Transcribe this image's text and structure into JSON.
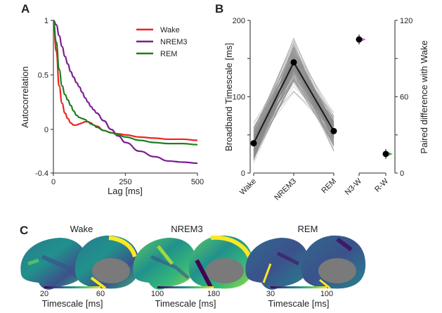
{
  "chart_data": [
    {
      "panel": "A",
      "type": "line",
      "xlabel": "Lag [ms]",
      "ylabel": "Autocorrelation",
      "xlim": [
        0,
        500
      ],
      "ylim": [
        -0.4,
        1
      ],
      "xticks": [
        "0",
        "250",
        "500"
      ],
      "yticks": [
        "-0.4",
        "0",
        "0.5",
        "1"
      ],
      "legend_position": "top-right",
      "x": [
        0,
        10,
        20,
        30,
        40,
        50,
        60,
        70,
        80,
        90,
        100,
        110,
        120,
        130,
        140,
        150,
        175,
        200,
        225,
        250,
        300,
        350,
        400,
        450,
        500
      ],
      "series": [
        {
          "name": "Wake",
          "color": "#ee2222",
          "values": [
            1.0,
            0.72,
            0.4,
            0.24,
            0.15,
            0.1,
            0.06,
            0.04,
            0.04,
            0.05,
            0.06,
            0.07,
            0.07,
            0.06,
            0.04,
            0.03,
            -0.01,
            -0.03,
            -0.04,
            -0.05,
            -0.07,
            -0.08,
            -0.09,
            -0.09,
            -0.1
          ]
        },
        {
          "name": "NREM3",
          "color": "#7b1f8f",
          "values": [
            1.0,
            0.96,
            0.86,
            0.76,
            0.67,
            0.6,
            0.53,
            0.48,
            0.43,
            0.39,
            0.34,
            0.29,
            0.25,
            0.21,
            0.18,
            0.15,
            0.08,
            0.0,
            -0.06,
            -0.12,
            -0.2,
            -0.25,
            -0.29,
            -0.3,
            -0.31
          ]
        },
        {
          "name": "REM",
          "color": "#1f7f1f",
          "values": [
            1.0,
            0.8,
            0.55,
            0.4,
            0.32,
            0.27,
            0.22,
            0.17,
            0.13,
            0.11,
            0.1,
            0.09,
            0.07,
            0.05,
            0.04,
            0.02,
            -0.01,
            -0.03,
            -0.05,
            -0.07,
            -0.1,
            -0.12,
            -0.13,
            -0.13,
            -0.14
          ]
        }
      ]
    },
    {
      "panel": "B",
      "type": "line",
      "ylabel": "Broadband Timescale [ms]",
      "ylabel_right": "Paired difference with Wake",
      "categories": [
        "Wake",
        "NREM3",
        "REM"
      ],
      "ylim": [
        0,
        200
      ],
      "yticks": [
        "0",
        "100",
        "200"
      ],
      "mean_values": [
        39,
        145,
        55
      ],
      "individual_lines_count_approx": 180,
      "individual_range": {
        "Wake": [
          13,
          85
        ],
        "NREM3": [
          88,
          200
        ],
        "REM": [
          25,
          115
        ]
      },
      "paired": {
        "categories": [
          "N3-W",
          "R-W"
        ],
        "ylim": [
          0,
          120
        ],
        "yticks": [
          "0",
          "60",
          "120"
        ],
        "values": [
          105,
          15
        ],
        "violin_colors": [
          "#cc66cc",
          "#44aa44"
        ]
      }
    },
    {
      "panel": "C",
      "type": "heatmap",
      "description": "Cortical surface maps of timescale (lateral and medial views)",
      "colormap": "viridis",
      "maps": [
        {
          "title": "Wake",
          "cbar_min": "20",
          "cbar_max": "60",
          "cbar_label": "Timescale [ms]"
        },
        {
          "title": "NREM3",
          "cbar_min": "100",
          "cbar_max": "180",
          "cbar_label": "Timescale [ms]"
        },
        {
          "title": "REM",
          "cbar_min": "30",
          "cbar_max": "100",
          "cbar_label": "Timescale [ms]"
        }
      ]
    }
  ],
  "panels": {
    "a": "A",
    "b": "B",
    "c": "C"
  }
}
